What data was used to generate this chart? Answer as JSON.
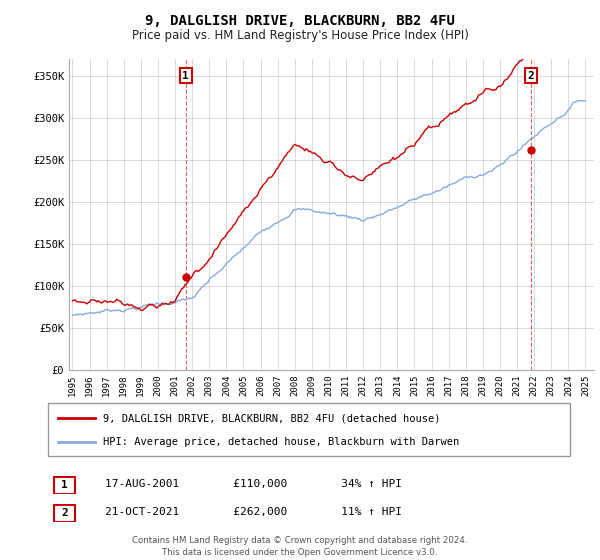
{
  "title": "9, DALGLISH DRIVE, BLACKBURN, BB2 4FU",
  "subtitle": "Price paid vs. HM Land Registry's House Price Index (HPI)",
  "ylim": [
    0,
    370000
  ],
  "yticks": [
    0,
    50000,
    100000,
    150000,
    200000,
    250000,
    300000,
    350000
  ],
  "ytick_labels": [
    "£0",
    "£50K",
    "£100K",
    "£150K",
    "£200K",
    "£250K",
    "£300K",
    "£350K"
  ],
  "red_line_color": "#cc0000",
  "blue_line_color": "#88aadd",
  "sale1_year": 2001.63,
  "sale1_price": 110000,
  "sale2_year": 2021.8,
  "sale2_price": 262000,
  "legend_red": "9, DALGLISH DRIVE, BLACKBURN, BB2 4FU (detached house)",
  "legend_blue": "HPI: Average price, detached house, Blackburn with Darwen",
  "table_rows": [
    {
      "num": "1",
      "date": "17-AUG-2001",
      "price": "£110,000",
      "hpi": "34% ↑ HPI"
    },
    {
      "num": "2",
      "date": "21-OCT-2021",
      "price": "£262,000",
      "hpi": "11% ↑ HPI"
    }
  ],
  "footer": "Contains HM Land Registry data © Crown copyright and database right 2024.\nThis data is licensed under the Open Government Licence v3.0.",
  "background_color": "#ffffff",
  "grid_color": "#cccccc"
}
